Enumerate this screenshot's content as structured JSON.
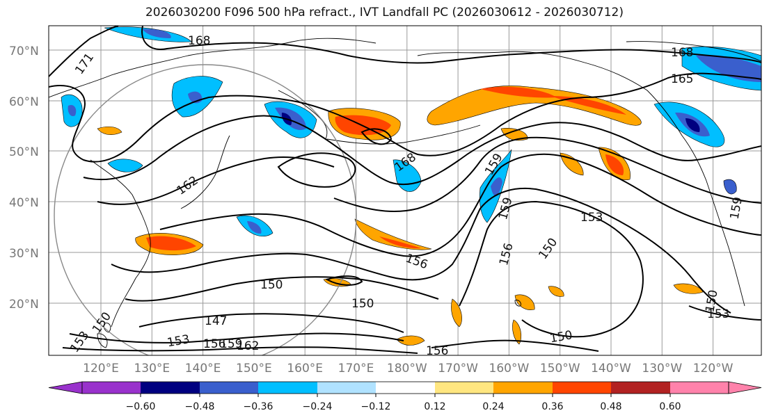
{
  "title": "2026030200 F096 500 hPa refract., IVT Landfall PC (2026030612 - 2026030712)",
  "map": {
    "lat_labels": [
      "70°N",
      "60°N",
      "50°N",
      "40°N",
      "30°N",
      "20°N"
    ],
    "lon_labels": [
      "120°E",
      "130°E",
      "140°E",
      "150°E",
      "160°E",
      "170°E",
      "180°W",
      "170°W",
      "160°W",
      "150°W",
      "140°W",
      "130°W",
      "120°W"
    ],
    "contour_labels": [
      {
        "text": "171"
      },
      {
        "text": "168"
      },
      {
        "text": "168"
      },
      {
        "text": "165"
      },
      {
        "text": "168"
      },
      {
        "text": "162"
      },
      {
        "text": "159"
      },
      {
        "text": "159"
      },
      {
        "text": "153"
      },
      {
        "text": "159"
      },
      {
        "text": "156"
      },
      {
        "text": "156"
      },
      {
        "text": "150"
      },
      {
        "text": "150"
      },
      {
        "text": "150"
      },
      {
        "text": "150"
      },
      {
        "text": "147"
      },
      {
        "text": "153"
      },
      {
        "text": "153"
      },
      {
        "text": "156"
      },
      {
        "text": "159"
      },
      {
        "text": "162"
      },
      {
        "text": "156"
      },
      {
        "text": "150"
      },
      {
        "text": "153"
      },
      {
        "text": "150"
      }
    ],
    "colors": {
      "strong_neg": "#000080",
      "mid_neg": "#3a5fcd",
      "weak_neg": "#00bfff",
      "weak_pos": "#ffa500",
      "mid_pos": "#ff4500",
      "coast": "#000000",
      "grid": "#999999"
    }
  },
  "colorbar": {
    "ticks": [
      "−0.60",
      "−0.48",
      "−0.36",
      "−0.24",
      "−0.12",
      "0.12",
      "0.24",
      "0.36",
      "0.48",
      "0.60"
    ],
    "colors": [
      "#9932cc",
      "#000080",
      "#3a5fcd",
      "#00bfff",
      "#b0e2ff",
      "#ffffff",
      "#ffe680",
      "#ffa500",
      "#ff4500",
      "#b22222",
      "#ff82ab"
    ]
  }
}
